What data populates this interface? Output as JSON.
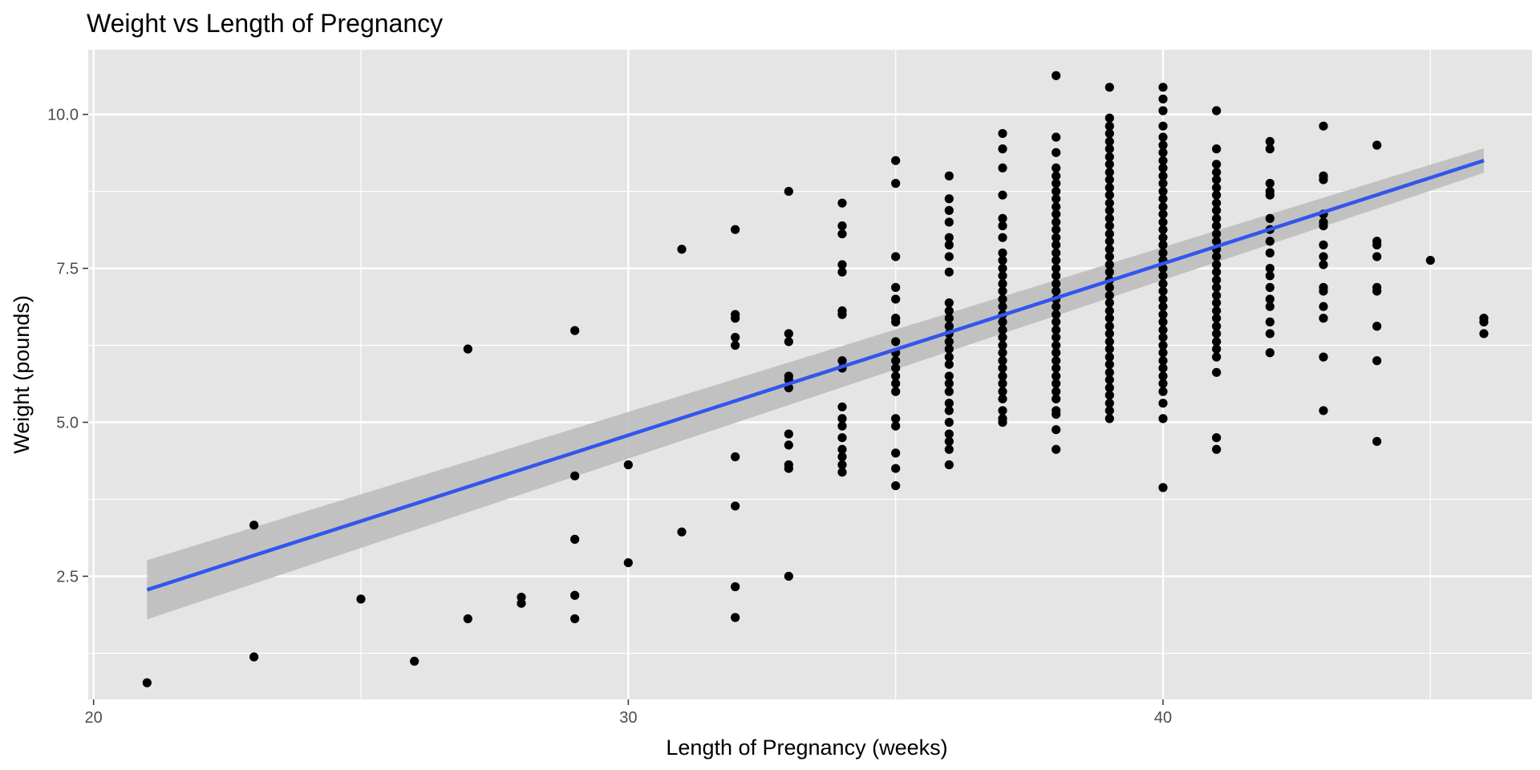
{
  "chart_data": {
    "type": "scatter",
    "title": "Weight vs Length of Pregnancy",
    "xlabel": "Length of Pregnancy (weeks)",
    "ylabel": "Weight (pounds)",
    "xlim": [
      19.9,
      46.9
    ],
    "ylim": [
      0.5,
      11.05
    ],
    "x_ticks": [
      20,
      30,
      40
    ],
    "x_tick_labels": [
      "20",
      "30",
      "40"
    ],
    "x_minor_ticks": [
      25,
      35,
      45
    ],
    "y_ticks": [
      2.5,
      5.0,
      7.5,
      10.0
    ],
    "y_tick_labels": [
      "2.5",
      "5.0",
      "7.5",
      "10.0"
    ],
    "y_minor_ticks": [
      1.25,
      3.75,
      6.25,
      8.75
    ],
    "grid": true,
    "colors": {
      "panel": "#e5e5e5",
      "grid": "#ffffff",
      "points": "#000000",
      "trend_line": "#3355ee",
      "confidence_band": "#bcbcbc"
    },
    "trend_line": {
      "method": "linear",
      "x": [
        21,
        46
      ],
      "y": [
        2.28,
        9.25
      ]
    },
    "confidence_band": {
      "x": [
        21,
        46
      ],
      "lower": [
        1.8,
        9.05
      ],
      "upper": [
        2.76,
        9.45
      ]
    },
    "points": [
      [
        21,
        0.77
      ],
      [
        23,
        3.33
      ],
      [
        23,
        1.19
      ],
      [
        25,
        2.13
      ],
      [
        26,
        1.12
      ],
      [
        27,
        6.19
      ],
      [
        27,
        1.81
      ],
      [
        28,
        2.16
      ],
      [
        28,
        2.06
      ],
      [
        29,
        6.49
      ],
      [
        29,
        4.13
      ],
      [
        29,
        3.1
      ],
      [
        29,
        2.19
      ],
      [
        29,
        1.81
      ],
      [
        30,
        4.31
      ],
      [
        30,
        2.72
      ],
      [
        31,
        7.81
      ],
      [
        31,
        3.22
      ],
      [
        32,
        8.13
      ],
      [
        32,
        6.75
      ],
      [
        32,
        6.69
      ],
      [
        32,
        6.38
      ],
      [
        32,
        6.25
      ],
      [
        32,
        4.44
      ],
      [
        32,
        3.64
      ],
      [
        32,
        2.33
      ],
      [
        32,
        1.83
      ],
      [
        33,
        8.75
      ],
      [
        33,
        6.44
      ],
      [
        33,
        6.31
      ],
      [
        33,
        5.75
      ],
      [
        33,
        5.69
      ],
      [
        33,
        5.56
      ],
      [
        33,
        4.81
      ],
      [
        33,
        4.63
      ],
      [
        33,
        4.31
      ],
      [
        33,
        4.25
      ],
      [
        33,
        2.5
      ],
      [
        34,
        8.56
      ],
      [
        34,
        8.19
      ],
      [
        34,
        8.06
      ],
      [
        34,
        7.56
      ],
      [
        34,
        7.44
      ],
      [
        34,
        6.81
      ],
      [
        34,
        6.75
      ],
      [
        34,
        6.0
      ],
      [
        34,
        5.88
      ],
      [
        34,
        5.25
      ],
      [
        34,
        5.06
      ],
      [
        34,
        4.94
      ],
      [
        34,
        4.75
      ],
      [
        34,
        4.56
      ],
      [
        34,
        4.44
      ],
      [
        34,
        4.31
      ],
      [
        34,
        4.19
      ],
      [
        35,
        9.25
      ],
      [
        35,
        8.88
      ],
      [
        35,
        7.69
      ],
      [
        35,
        7.19
      ],
      [
        35,
        7.0
      ],
      [
        35,
        6.69
      ],
      [
        35,
        6.63
      ],
      [
        35,
        6.31
      ],
      [
        35,
        6.13
      ],
      [
        35,
        6.0
      ],
      [
        35,
        5.88
      ],
      [
        35,
        5.75
      ],
      [
        35,
        5.63
      ],
      [
        35,
        5.5
      ],
      [
        35,
        5.06
      ],
      [
        35,
        4.94
      ],
      [
        35,
        4.5
      ],
      [
        35,
        4.25
      ],
      [
        35,
        3.97
      ],
      [
        36,
        9.0
      ],
      [
        36,
        8.63
      ],
      [
        36,
        8.44
      ],
      [
        36,
        8.25
      ],
      [
        36,
        8.0
      ],
      [
        36,
        7.88
      ],
      [
        36,
        7.69
      ],
      [
        36,
        7.44
      ],
      [
        36,
        6.94
      ],
      [
        36,
        6.81
      ],
      [
        36,
        6.69
      ],
      [
        36,
        6.56
      ],
      [
        36,
        6.44
      ],
      [
        36,
        6.31
      ],
      [
        36,
        6.19
      ],
      [
        36,
        6.06
      ],
      [
        36,
        5.94
      ],
      [
        36,
        5.75
      ],
      [
        36,
        5.63
      ],
      [
        36,
        5.5
      ],
      [
        36,
        5.31
      ],
      [
        36,
        5.19
      ],
      [
        36,
        5.0
      ],
      [
        36,
        4.81
      ],
      [
        36,
        4.69
      ],
      [
        36,
        4.56
      ],
      [
        36,
        4.31
      ],
      [
        37,
        9.69
      ],
      [
        37,
        9.44
      ],
      [
        37,
        9.13
      ],
      [
        37,
        8.69
      ],
      [
        37,
        8.31
      ],
      [
        37,
        8.19
      ],
      [
        37,
        8.0
      ],
      [
        37,
        7.75
      ],
      [
        37,
        7.63
      ],
      [
        37,
        7.5
      ],
      [
        37,
        7.38
      ],
      [
        37,
        7.25
      ],
      [
        37,
        7.13
      ],
      [
        37,
        7.0
      ],
      [
        37,
        6.88
      ],
      [
        37,
        6.75
      ],
      [
        37,
        6.63
      ],
      [
        37,
        6.5
      ],
      [
        37,
        6.38
      ],
      [
        37,
        6.25
      ],
      [
        37,
        6.13
      ],
      [
        37,
        6.0
      ],
      [
        37,
        5.88
      ],
      [
        37,
        5.75
      ],
      [
        37,
        5.63
      ],
      [
        37,
        5.5
      ],
      [
        37,
        5.38
      ],
      [
        37,
        5.19
      ],
      [
        37,
        5.06
      ],
      [
        37,
        5.0
      ],
      [
        38,
        10.63
      ],
      [
        38,
        9.63
      ],
      [
        38,
        9.38
      ],
      [
        38,
        9.13
      ],
      [
        38,
        9.0
      ],
      [
        38,
        8.88
      ],
      [
        38,
        8.75
      ],
      [
        38,
        8.63
      ],
      [
        38,
        8.5
      ],
      [
        38,
        8.38
      ],
      [
        38,
        8.25
      ],
      [
        38,
        8.13
      ],
      [
        38,
        8.0
      ],
      [
        38,
        7.88
      ],
      [
        38,
        7.75
      ],
      [
        38,
        7.63
      ],
      [
        38,
        7.5
      ],
      [
        38,
        7.38
      ],
      [
        38,
        7.25
      ],
      [
        38,
        7.13
      ],
      [
        38,
        7.0
      ],
      [
        38,
        6.88
      ],
      [
        38,
        6.75
      ],
      [
        38,
        6.63
      ],
      [
        38,
        6.5
      ],
      [
        38,
        6.38
      ],
      [
        38,
        6.25
      ],
      [
        38,
        6.13
      ],
      [
        38,
        6.0
      ],
      [
        38,
        5.88
      ],
      [
        38,
        5.75
      ],
      [
        38,
        5.63
      ],
      [
        38,
        5.5
      ],
      [
        38,
        5.38
      ],
      [
        38,
        5.19
      ],
      [
        38,
        5.13
      ],
      [
        38,
        4.88
      ],
      [
        38,
        4.56
      ],
      [
        39,
        10.44
      ],
      [
        39,
        9.94
      ],
      [
        39,
        9.81
      ],
      [
        39,
        9.69
      ],
      [
        39,
        9.56
      ],
      [
        39,
        9.44
      ],
      [
        39,
        9.31
      ],
      [
        39,
        9.19
      ],
      [
        39,
        9.06
      ],
      [
        39,
        8.94
      ],
      [
        39,
        8.81
      ],
      [
        39,
        8.69
      ],
      [
        39,
        8.56
      ],
      [
        39,
        8.44
      ],
      [
        39,
        8.31
      ],
      [
        39,
        8.19
      ],
      [
        39,
        8.06
      ],
      [
        39,
        7.94
      ],
      [
        39,
        7.81
      ],
      [
        39,
        7.69
      ],
      [
        39,
        7.56
      ],
      [
        39,
        7.44
      ],
      [
        39,
        7.31
      ],
      [
        39,
        7.19
      ],
      [
        39,
        7.06
      ],
      [
        39,
        6.94
      ],
      [
        39,
        6.81
      ],
      [
        39,
        6.69
      ],
      [
        39,
        6.56
      ],
      [
        39,
        6.44
      ],
      [
        39,
        6.31
      ],
      [
        39,
        6.19
      ],
      [
        39,
        6.06
      ],
      [
        39,
        5.94
      ],
      [
        39,
        5.81
      ],
      [
        39,
        5.69
      ],
      [
        39,
        5.56
      ],
      [
        39,
        5.44
      ],
      [
        39,
        5.31
      ],
      [
        39,
        5.19
      ],
      [
        39,
        5.06
      ],
      [
        40,
        10.44
      ],
      [
        40,
        10.25
      ],
      [
        40,
        10.06
      ],
      [
        40,
        9.81
      ],
      [
        40,
        9.63
      ],
      [
        40,
        9.5
      ],
      [
        40,
        9.38
      ],
      [
        40,
        9.25
      ],
      [
        40,
        9.13
      ],
      [
        40,
        9.0
      ],
      [
        40,
        8.88
      ],
      [
        40,
        8.75
      ],
      [
        40,
        8.63
      ],
      [
        40,
        8.5
      ],
      [
        40,
        8.38
      ],
      [
        40,
        8.25
      ],
      [
        40,
        8.13
      ],
      [
        40,
        8.0
      ],
      [
        40,
        7.88
      ],
      [
        40,
        7.75
      ],
      [
        40,
        7.63
      ],
      [
        40,
        7.5
      ],
      [
        40,
        7.38
      ],
      [
        40,
        7.25
      ],
      [
        40,
        7.13
      ],
      [
        40,
        7.0
      ],
      [
        40,
        6.88
      ],
      [
        40,
        6.75
      ],
      [
        40,
        6.63
      ],
      [
        40,
        6.5
      ],
      [
        40,
        6.38
      ],
      [
        40,
        6.25
      ],
      [
        40,
        6.13
      ],
      [
        40,
        6.0
      ],
      [
        40,
        5.88
      ],
      [
        40,
        5.75
      ],
      [
        40,
        5.63
      ],
      [
        40,
        5.5
      ],
      [
        40,
        5.31
      ],
      [
        40,
        5.06
      ],
      [
        40,
        3.94
      ],
      [
        41,
        10.06
      ],
      [
        41,
        9.44
      ],
      [
        41,
        9.19
      ],
      [
        41,
        9.06
      ],
      [
        41,
        8.94
      ],
      [
        41,
        8.81
      ],
      [
        41,
        8.69
      ],
      [
        41,
        8.56
      ],
      [
        41,
        8.44
      ],
      [
        41,
        8.31
      ],
      [
        41,
        8.19
      ],
      [
        41,
        8.06
      ],
      [
        41,
        7.94
      ],
      [
        41,
        7.81
      ],
      [
        41,
        7.69
      ],
      [
        41,
        7.56
      ],
      [
        41,
        7.44
      ],
      [
        41,
        7.31
      ],
      [
        41,
        7.19
      ],
      [
        41,
        7.06
      ],
      [
        41,
        6.94
      ],
      [
        41,
        6.81
      ],
      [
        41,
        6.69
      ],
      [
        41,
        6.56
      ],
      [
        41,
        6.44
      ],
      [
        41,
        6.31
      ],
      [
        41,
        6.19
      ],
      [
        41,
        6.06
      ],
      [
        41,
        5.81
      ],
      [
        41,
        4.75
      ],
      [
        41,
        4.56
      ],
      [
        42,
        9.56
      ],
      [
        42,
        9.44
      ],
      [
        42,
        8.88
      ],
      [
        42,
        8.75
      ],
      [
        42,
        8.69
      ],
      [
        42,
        8.31
      ],
      [
        42,
        8.13
      ],
      [
        42,
        7.94
      ],
      [
        42,
        7.75
      ],
      [
        42,
        7.5
      ],
      [
        42,
        7.38
      ],
      [
        42,
        7.19
      ],
      [
        42,
        7.0
      ],
      [
        42,
        6.88
      ],
      [
        42,
        6.63
      ],
      [
        42,
        6.44
      ],
      [
        42,
        6.13
      ],
      [
        43,
        9.81
      ],
      [
        43,
        9.0
      ],
      [
        43,
        8.94
      ],
      [
        43,
        8.38
      ],
      [
        43,
        8.25
      ],
      [
        43,
        8.19
      ],
      [
        43,
        7.88
      ],
      [
        43,
        7.69
      ],
      [
        43,
        7.56
      ],
      [
        43,
        7.19
      ],
      [
        43,
        7.13
      ],
      [
        43,
        6.88
      ],
      [
        43,
        6.69
      ],
      [
        43,
        6.06
      ],
      [
        43,
        5.19
      ],
      [
        44,
        9.5
      ],
      [
        44,
        7.94
      ],
      [
        44,
        7.88
      ],
      [
        44,
        7.69
      ],
      [
        44,
        7.19
      ],
      [
        44,
        7.13
      ],
      [
        44,
        6.56
      ],
      [
        44,
        6.0
      ],
      [
        44,
        4.69
      ],
      [
        45,
        7.63
      ],
      [
        46,
        6.69
      ],
      [
        46,
        6.63
      ],
      [
        46,
        6.44
      ]
    ]
  }
}
